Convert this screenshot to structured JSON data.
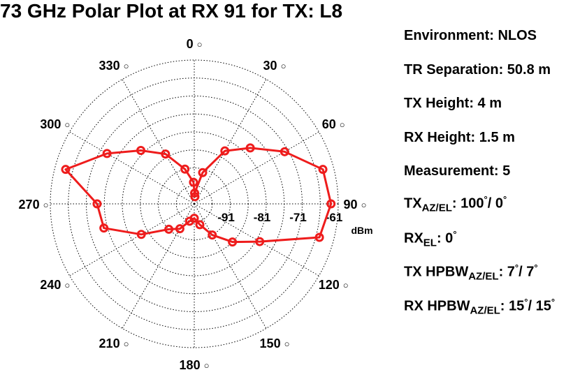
{
  "title": "73 GHz Polar Plot at RX 91 for TX: L8",
  "info": {
    "environment": "Environment: NLOS",
    "tr_separation": "TR Separation: 50.8 m",
    "tx_height": "TX Height: 4 m",
    "rx_height": "RX Height: 1.5 m",
    "measurement": "Measurement: 5",
    "tx_azel_label": "TX",
    "tx_azel_sub": "AZ/EL",
    "tx_azel_value": ": 100",
    "tx_azel_mid": "/ 0",
    "rx_el_label": "RX",
    "rx_el_sub": "EL",
    "rx_el_value": ": 0",
    "tx_hpbw_label": "TX HPBW",
    "tx_hpbw_sub": "AZ/EL",
    "tx_hpbw_value": ": 7",
    "tx_hpbw_mid": "/ 7",
    "rx_hpbw_label": "RX HPBW",
    "rx_hpbw_sub": "AZ/EL",
    "rx_hpbw_value": ": 15",
    "rx_hpbw_mid": "/ 15",
    "degree_symbol": "°"
  },
  "chart_data": {
    "type": "polar",
    "title": "73 GHz Polar Plot at RX 91 for TX: L8",
    "r_unit": "dBm",
    "r_min": -101,
    "r_max": -61,
    "r_ticks": [
      -91,
      -81,
      -71,
      -61
    ],
    "r_tick_labels": [
      "-91",
      "-81",
      "-71",
      "-61"
    ],
    "angle_ticks": [
      0,
      30,
      60,
      90,
      120,
      150,
      180,
      210,
      240,
      270,
      300,
      330
    ],
    "angle_tick_labels": [
      "0",
      "30",
      "60",
      "90",
      "120",
      "150",
      "180",
      "210",
      "240",
      "270",
      "300",
      "330"
    ],
    "angle_label_suffix": "°",
    "direction": "clockwise",
    "zero_location": "top",
    "grid": true,
    "series_color": "#ee1c1c",
    "points": [
      {
        "angle": 2,
        "value": -98
      },
      {
        "angle": 15,
        "value": -92
      },
      {
        "angle": 30,
        "value": -84
      },
      {
        "angle": 45,
        "value": -79
      },
      {
        "angle": 60,
        "value": -72
      },
      {
        "angle": 75,
        "value": -64
      },
      {
        "angle": 90,
        "value": -63
      },
      {
        "angle": 105,
        "value": -65
      },
      {
        "angle": 120,
        "value": -80
      },
      {
        "angle": 135,
        "value": -86
      },
      {
        "angle": 150,
        "value": -91
      },
      {
        "angle": 165,
        "value": -95
      },
      {
        "angle": 180,
        "value": -97
      },
      {
        "angle": 195,
        "value": -96
      },
      {
        "angle": 210,
        "value": -93
      },
      {
        "angle": 225,
        "value": -91
      },
      {
        "angle": 240,
        "value": -84
      },
      {
        "angle": 255,
        "value": -75
      },
      {
        "angle": 270,
        "value": -74
      },
      {
        "angle": 285,
        "value": -64
      },
      {
        "angle": 300,
        "value": -73
      },
      {
        "angle": 315,
        "value": -80
      },
      {
        "angle": 330,
        "value": -85
      },
      {
        "angle": 345,
        "value": -91
      },
      {
        "angle": 358,
        "value": -95
      },
      {
        "angle": 5,
        "value": -99
      }
    ]
  }
}
